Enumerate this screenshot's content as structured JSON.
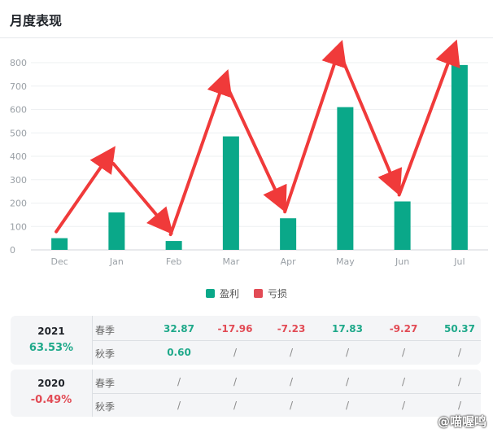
{
  "page_title": "月度表现",
  "chart_data": {
    "type": "bar",
    "categories": [
      "Dec",
      "Jan",
      "Feb",
      "Mar",
      "Apr",
      "May",
      "Jun",
      "Jul"
    ],
    "series": [
      {
        "name": "盈利",
        "values": [
          50,
          160,
          38,
          485,
          135,
          610,
          207,
          790
        ]
      }
    ],
    "y_ticks": [
      0,
      100,
      200,
      300,
      400,
      500,
      600,
      700,
      800
    ],
    "ylim": [
      0,
      800
    ],
    "grid": true,
    "colors": {
      "profit": "#0aa889",
      "loss": "#e24b55",
      "arrow": "#f03a3a"
    }
  },
  "legend": [
    {
      "label": "盈利",
      "color": "#0aa889"
    },
    {
      "label": "亏损",
      "color": "#e24b55"
    }
  ],
  "table": [
    {
      "year": "2021",
      "percent": "63.53%",
      "percent_color": "#1fa98a",
      "rows": [
        {
          "season": "春季",
          "values": [
            "32.87",
            "-17.96",
            "-7.23",
            "17.83",
            "-9.27",
            "50.37"
          ]
        },
        {
          "season": "秋季",
          "values": [
            "0.60",
            "/",
            "/",
            "/",
            "/",
            "/"
          ]
        }
      ]
    },
    {
      "year": "2020",
      "percent": "-0.49%",
      "percent_color": "#e24b55",
      "rows": [
        {
          "season": "春季",
          "values": [
            "/",
            "/",
            "/",
            "/",
            "/",
            "/"
          ]
        },
        {
          "season": "秋季",
          "values": [
            "/",
            "/",
            "/",
            "/",
            "/",
            "/"
          ]
        }
      ]
    }
  ],
  "watermark": "@喵喔鸣"
}
